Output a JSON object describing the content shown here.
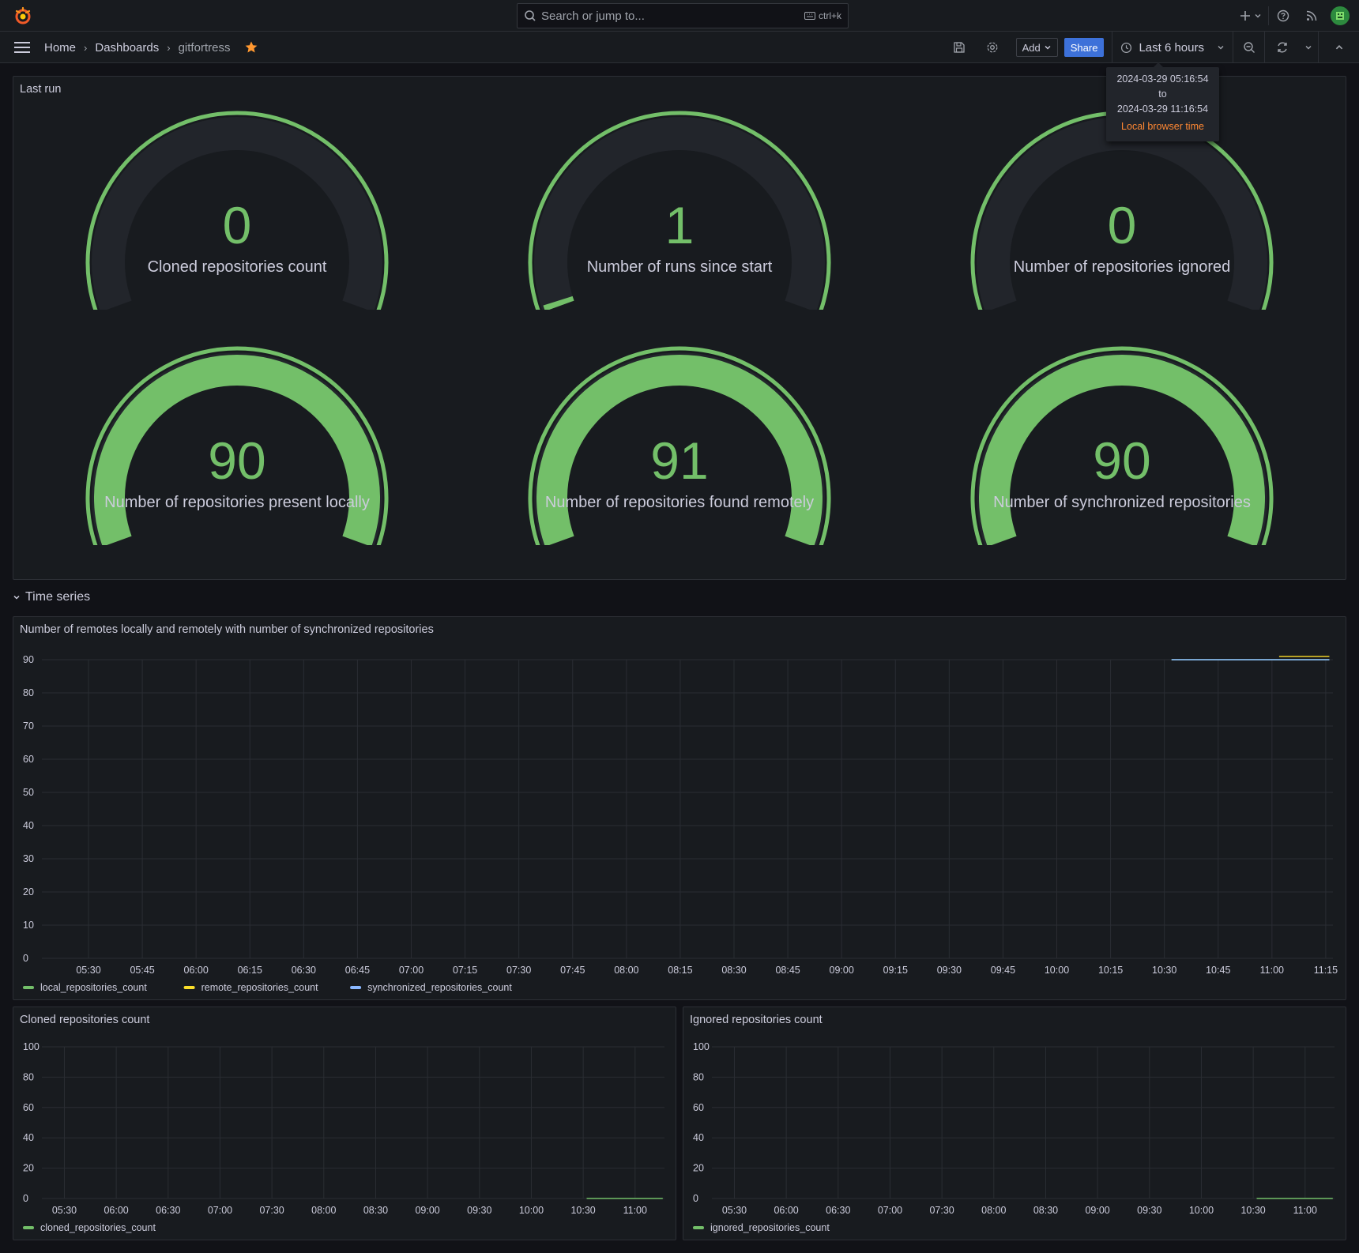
{
  "topbar": {
    "search_placeholder": "Search or jump to...",
    "search_shortcut": "ctrl+k"
  },
  "breadcrumb": {
    "home": "Home",
    "dashboards": "Dashboards",
    "current": "gitfortress"
  },
  "toolbar": {
    "add_label": "Add",
    "share_label": "Share",
    "time_range": "Last 6 hours"
  },
  "time_tooltip": {
    "from": "2024-03-29 05:16:54",
    "to_word": "to",
    "to": "2024-03-29 11:16:54",
    "timezone": "Local browser time"
  },
  "colors": {
    "green": "#73bf69",
    "yellow": "#fade2a",
    "blue": "#8ab8ff",
    "accent": "#3d71d9",
    "star": "#ff9830"
  },
  "last_run": {
    "title": "Last run",
    "gauges": [
      {
        "value": "0",
        "label": "Cloned repositories count",
        "fraction": 0
      },
      {
        "value": "1",
        "label": "Number of runs since start",
        "fraction": 0.011
      },
      {
        "value": "0",
        "label": "Number of repositories ignored",
        "fraction": 0
      },
      {
        "value": "90",
        "label": "Number of repositories present locally",
        "fraction": 1
      },
      {
        "value": "91",
        "label": "Number of repositories found remotely",
        "fraction": 1
      },
      {
        "value": "90",
        "label": "Number of synchronized repositories",
        "fraction": 1
      }
    ]
  },
  "time_series_row": {
    "title": "Time series"
  },
  "chart_data": [
    {
      "type": "line",
      "title": "Number of remotes locally and remotely with number of synchronized repositories",
      "ylim": [
        0,
        90
      ],
      "yticks": [
        "90",
        "80",
        "70",
        "60",
        "50",
        "40",
        "30",
        "20",
        "10",
        "0"
      ],
      "xticks": [
        "05:30",
        "05:45",
        "06:00",
        "06:15",
        "06:30",
        "06:45",
        "07:00",
        "07:15",
        "07:30",
        "07:45",
        "08:00",
        "08:15",
        "08:30",
        "08:45",
        "09:00",
        "09:15",
        "09:30",
        "09:45",
        "10:00",
        "10:15",
        "10:30",
        "10:45",
        "11:00",
        "11:15"
      ],
      "grid": true,
      "legend_position": "bottom-left",
      "series": [
        {
          "name": "local_repositories_count",
          "color": "#73bf69",
          "x": [
            "10:32",
            "11:16"
          ],
          "values": [
            90,
            90
          ]
        },
        {
          "name": "remote_repositories_count",
          "color": "#fade2a",
          "x": [
            "11:02",
            "11:16"
          ],
          "values": [
            91,
            91
          ]
        },
        {
          "name": "synchronized_repositories_count",
          "color": "#8ab8ff",
          "x": [
            "10:32",
            "11:16"
          ],
          "values": [
            90,
            90
          ]
        }
      ]
    },
    {
      "type": "line",
      "title": "Cloned repositories count",
      "ylim": [
        0,
        100
      ],
      "yticks": [
        "100",
        "80",
        "60",
        "40",
        "20",
        "0"
      ],
      "xticks": [
        "05:30",
        "06:00",
        "06:30",
        "07:00",
        "07:30",
        "08:00",
        "08:30",
        "09:00",
        "09:30",
        "10:00",
        "10:30",
        "11:00"
      ],
      "grid": true,
      "legend_position": "bottom-left",
      "series": [
        {
          "name": "cloned_repositories_count",
          "color": "#73bf69",
          "x": [
            "10:32",
            "11:16"
          ],
          "values": [
            0,
            0
          ]
        }
      ]
    },
    {
      "type": "line",
      "title": "Ignored repositories count",
      "ylim": [
        0,
        100
      ],
      "yticks": [
        "100",
        "80",
        "60",
        "40",
        "20",
        "0"
      ],
      "xticks": [
        "05:30",
        "06:00",
        "06:30",
        "07:00",
        "07:30",
        "08:00",
        "08:30",
        "09:00",
        "09:30",
        "10:00",
        "10:30",
        "11:00"
      ],
      "grid": true,
      "legend_position": "bottom-left",
      "series": [
        {
          "name": "ignored_repositories_count",
          "color": "#73bf69",
          "x": [
            "10:32",
            "11:16"
          ],
          "values": [
            0,
            0
          ]
        }
      ]
    }
  ]
}
